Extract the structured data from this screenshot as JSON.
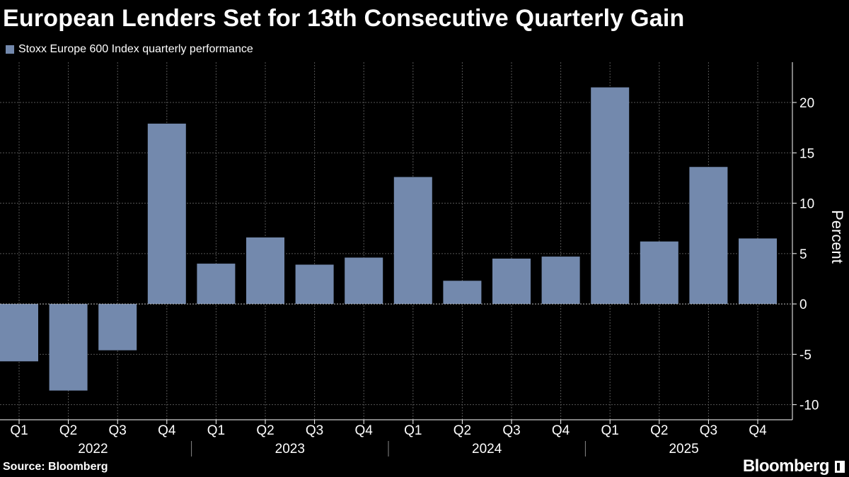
{
  "title": "European Lenders Set for 13th Consecutive Quarterly Gain",
  "legend": {
    "label": "Stoxx Europe 600 Index quarterly performance",
    "color": "#7389ad"
  },
  "source": "Source: Bloomberg",
  "brand": "Bloomberg",
  "colors": {
    "background": "#000000",
    "bar": "#7389ad",
    "grid": "#555555",
    "axis": "#ffffff",
    "text": "#ffffff"
  },
  "chart_data": {
    "type": "bar",
    "title": "European Lenders Set for 13th Consecutive Quarterly Gain",
    "ylabel": "Percent",
    "xlabel": "",
    "y_axis_side": "right",
    "ylim": [
      -11.5,
      24
    ],
    "yticks": [
      -10,
      -5,
      0,
      5,
      10,
      15,
      20
    ],
    "grid": true,
    "legend_position": "top-left",
    "categories": [
      "Q1",
      "Q2",
      "Q3",
      "Q4",
      "Q1",
      "Q2",
      "Q3",
      "Q4",
      "Q1",
      "Q2",
      "Q3",
      "Q4",
      "Q1",
      "Q2",
      "Q3",
      "Q4"
    ],
    "years": [
      "2022",
      "2023",
      "2024",
      "2025"
    ],
    "series": [
      {
        "name": "Stoxx Europe 600 Index quarterly performance",
        "values": [
          -5.7,
          -8.6,
          -4.6,
          17.9,
          4.0,
          6.6,
          3.9,
          4.6,
          12.6,
          2.3,
          4.5,
          4.7,
          21.5,
          6.2,
          13.6,
          6.5
        ]
      }
    ]
  }
}
